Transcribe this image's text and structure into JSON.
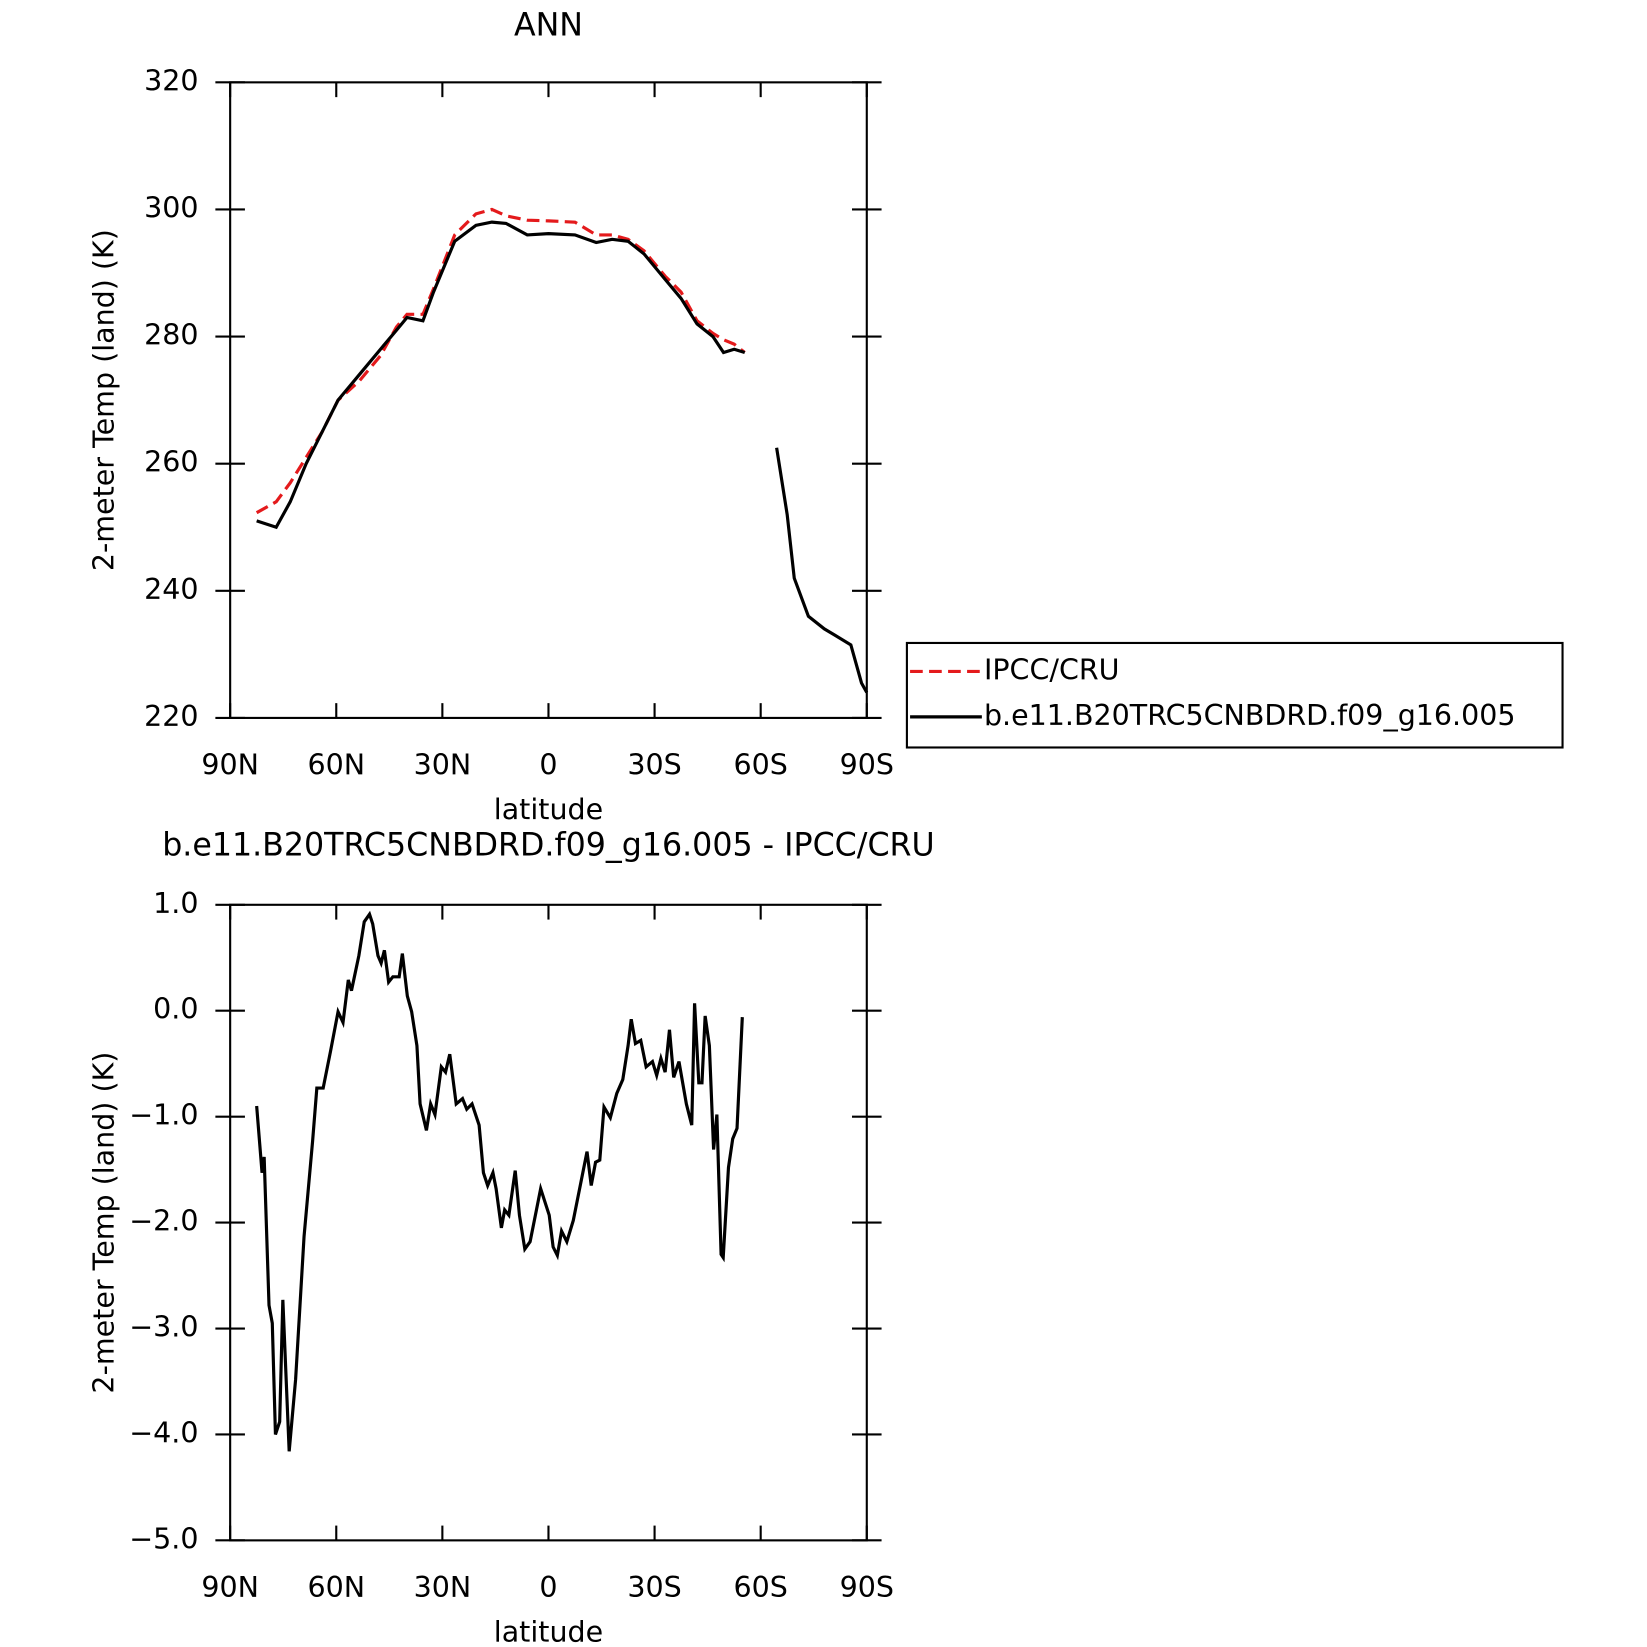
{
  "chart_data": [
    {
      "type": "line",
      "title": "ANN",
      "xlabel": "latitude",
      "ylabel": "2-meter Temp (land) (K)",
      "x": [
        82.5,
        77,
        73,
        68.5,
        64,
        59.5,
        53.5,
        47.5,
        43,
        40,
        35.5,
        32.5,
        26.5,
        20.5,
        16,
        12,
        6,
        0,
        -7.5,
        -13.5,
        -18,
        -22.5,
        -27,
        -33,
        -37.5,
        -42,
        -46.5,
        -49.5,
        -52.5,
        -55.5,
        -60,
        -64.5,
        -67.5,
        -69.5,
        -73.5,
        -78,
        -81,
        -85.5,
        -88.5,
        -90
      ],
      "series": [
        {
          "name": "IPCC/CRU",
          "color": "#e41a1c",
          "dash": "dashed",
          "values": [
            252.3,
            254,
            257,
            261,
            265,
            270,
            273,
            277,
            281.5,
            283.5,
            283.5,
            287.5,
            296,
            299.3,
            300,
            299,
            298.3,
            298.2,
            298,
            296,
            296,
            295.3,
            293.5,
            289.5,
            287,
            282.5,
            280.5,
            279.5,
            278.8,
            277.5,
            null,
            null,
            null,
            null,
            null,
            null,
            null,
            null,
            null,
            null
          ]
        },
        {
          "name": "b.e11.B20TRC5CNBDRD.f09_g16.005",
          "color": "#000000",
          "dash": "solid",
          "values": [
            251,
            250,
            254,
            260,
            265,
            270,
            274,
            278,
            281,
            283,
            282.5,
            287,
            295,
            297.5,
            298,
            297.8,
            296,
            296.2,
            296,
            294.8,
            295.3,
            295,
            293,
            289,
            286,
            282,
            280,
            277.5,
            278,
            277.5,
            null,
            262.5,
            252,
            242,
            236,
            234,
            233,
            231.5,
            225.5,
            224
          ]
        }
      ],
      "xlim": [
        90,
        -90
      ],
      "xticks": [
        {
          "value": 90,
          "label": "90N"
        },
        {
          "value": 60,
          "label": "60N"
        },
        {
          "value": 30,
          "label": "30N"
        },
        0,
        {
          "value": -30,
          "label": "30S"
        },
        {
          "value": -60,
          "label": "60S"
        },
        {
          "value": -90,
          "label": "90S"
        }
      ],
      "ylim": [
        220,
        320
      ],
      "yticks": [
        220,
        240,
        260,
        280,
        300,
        320
      ],
      "legend": "right"
    },
    {
      "type": "line",
      "title": "b.e11.B20TRC5CNBDRD.f09_g16.005 - IPCC/CRU",
      "xlabel": "latitude",
      "ylabel": "2-meter Temp (land) (K)",
      "x": [
        82.5,
        81.0,
        80.4,
        79.0,
        78.1,
        77.2,
        76.0,
        75.1,
        73.3,
        71.5,
        69.1,
        66.7,
        65.5,
        63.7,
        61.6,
        59.5,
        58.1,
        56.6,
        55.7,
        53.6,
        52.1,
        50.6,
        49.7,
        48.2,
        47.3,
        46.4,
        45.2,
        44.0,
        42.2,
        41.3,
        39.9,
        38.7,
        37.2,
        36.3,
        34.5,
        33.3,
        32.1,
        30.3,
        29.1,
        27.9,
        26.1,
        24.3,
        23.1,
        21.6,
        19.6,
        18.4,
        17.2,
        15.7,
        14.8,
        13.3,
        12.4,
        11.2,
        9.4,
        8.2,
        6.7,
        5.2,
        3.4,
        2.2,
        -0.2,
        -1.3,
        -2.5,
        -3.7,
        -5.2,
        -7.0,
        -9.1,
        -10.9,
        -12.1,
        -13.3,
        -14.5,
        -15.7,
        -17.5,
        -19.3,
        -21.0,
        -22.5,
        -23.4,
        -24.6,
        -26.1,
        -27.6,
        -29.4,
        -30.6,
        -31.8,
        -33.0,
        -34.2,
        -35.4,
        -36.9,
        -39.0,
        -40.5,
        -41.3,
        -42.5,
        -43.4,
        -44.3,
        -45.5,
        -46.7,
        -47.6,
        -48.8,
        -49.4,
        -50.9,
        -52.1,
        -53.3,
        -54.8
      ],
      "series": [
        {
          "color": "#000000",
          "dash": "solid",
          "values": [
            -0.9,
            -1.53,
            -1.38,
            -2.78,
            -2.95,
            -4.0,
            -3.88,
            -2.73,
            -4.16,
            -3.48,
            -2.13,
            -1.23,
            -0.73,
            -0.73,
            -0.38,
            -0.01,
            -0.11,
            0.29,
            0.19,
            0.52,
            0.84,
            0.91,
            0.82,
            0.52,
            0.45,
            0.57,
            0.27,
            0.32,
            0.32,
            0.54,
            0.14,
            -0.01,
            -0.33,
            -0.88,
            -1.13,
            -0.88,
            -0.98,
            -0.53,
            -0.58,
            -0.41,
            -0.88,
            -0.83,
            -0.93,
            -0.88,
            -1.08,
            -1.53,
            -1.65,
            -1.53,
            -1.68,
            -2.05,
            -1.88,
            -1.93,
            -1.51,
            -1.93,
            -2.25,
            -2.18,
            -1.88,
            -1.68,
            -1.93,
            -2.23,
            -2.31,
            -2.08,
            -2.18,
            -1.98,
            -1.63,
            -1.33,
            -1.65,
            -1.43,
            -1.41,
            -0.91,
            -1.01,
            -0.78,
            -0.65,
            -0.33,
            -0.08,
            -0.31,
            -0.28,
            -0.53,
            -0.48,
            -0.61,
            -0.45,
            -0.58,
            -0.18,
            -0.63,
            -0.48,
            -0.88,
            -1.08,
            0.07,
            -0.68,
            -0.68,
            -0.05,
            -0.33,
            -1.31,
            -0.98,
            -2.3,
            -2.33,
            -1.48,
            -1.21,
            -1.11,
            -0.06
          ]
        }
      ],
      "xlim": [
        90,
        -90
      ],
      "xticks": [
        {
          "value": 90,
          "label": "90N"
        },
        {
          "value": 60,
          "label": "60N"
        },
        {
          "value": 30,
          "label": "30N"
        },
        0,
        {
          "value": -30,
          "label": "30S"
        },
        {
          "value": -60,
          "label": "60S"
        },
        {
          "value": -90,
          "label": "90S"
        }
      ],
      "ylim": [
        -5,
        1
      ],
      "yticks": [
        {
          "value": -5,
          "label": "−5.0"
        },
        {
          "value": -4,
          "label": "−4.0"
        },
        {
          "value": -3,
          "label": "−3.0"
        },
        {
          "value": -2,
          "label": "−2.0"
        },
        {
          "value": -1,
          "label": "−1.0"
        },
        {
          "value": 0,
          "label": "0.0"
        },
        {
          "value": 1,
          "label": "1.0"
        }
      ]
    }
  ]
}
